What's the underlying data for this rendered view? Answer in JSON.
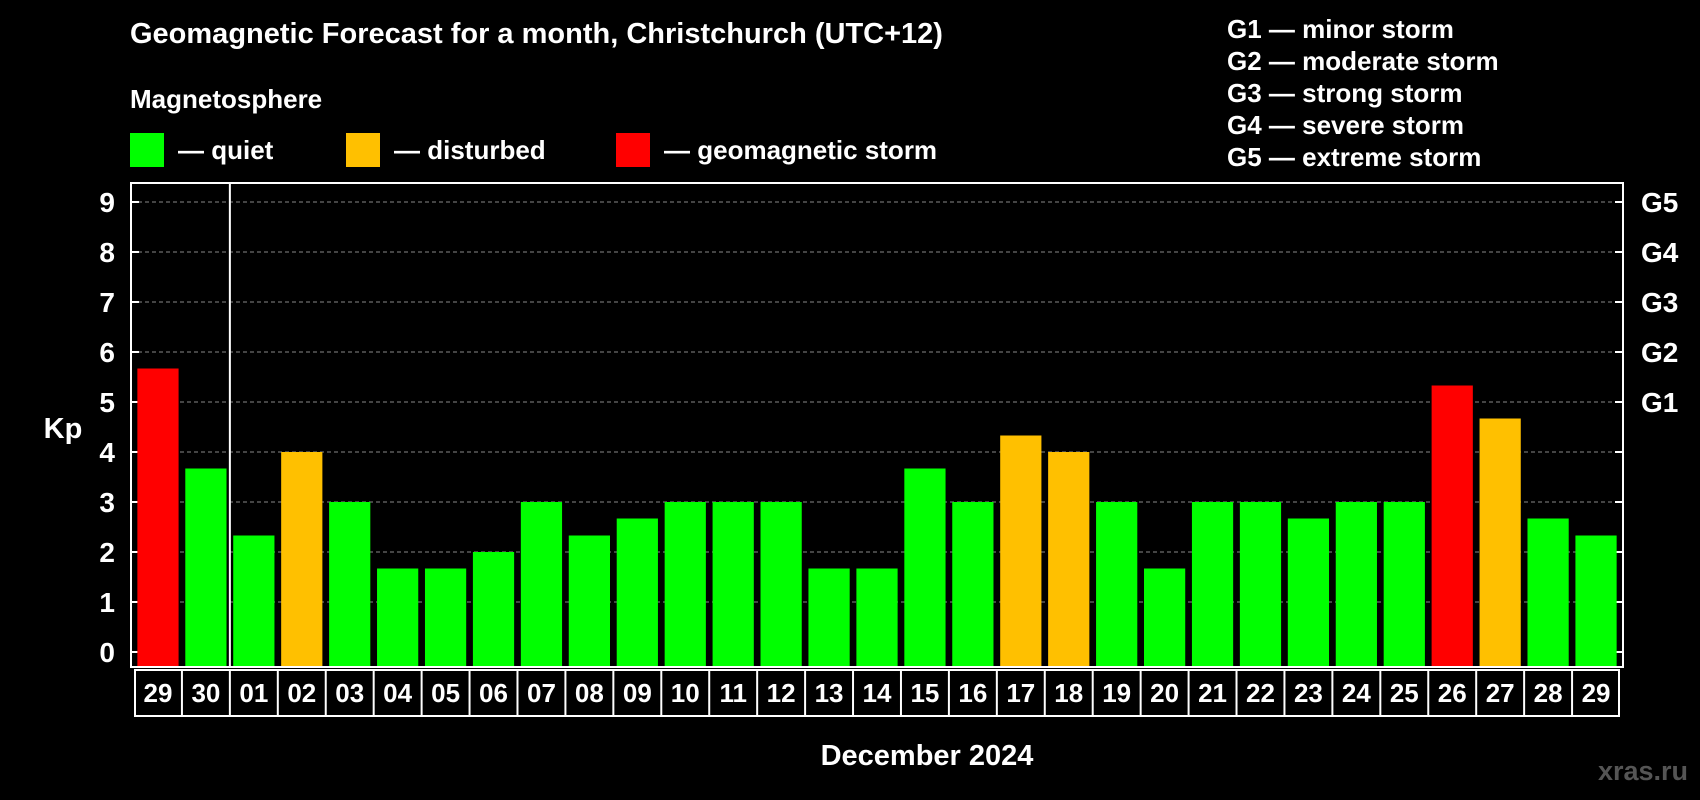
{
  "title": "Geomagnetic Forecast for a month, Christchurch (UTC+12)",
  "magnetosphere_label": "Magnetosphere",
  "legend": [
    {
      "label": "— quiet",
      "color": "#00ff00"
    },
    {
      "label": "— disturbed",
      "color": "#ffc000"
    },
    {
      "label": "— geomagnetic storm",
      "color": "#ff0000"
    }
  ],
  "g_legend": [
    "G1 — minor storm",
    "G2 — moderate storm",
    "G3 — strong storm",
    "G4 — severe storm",
    "G5 — extreme storm"
  ],
  "watermark": "xras.ru",
  "chart_data": {
    "type": "bar",
    "title": "Geomagnetic Forecast for a month, Christchurch (UTC+12)",
    "xlabel": "December 2024",
    "ylabel": "Kp",
    "ylim": [
      0,
      9
    ],
    "yticks": [
      "0",
      "1",
      "2",
      "3",
      "4",
      "5",
      "6",
      "7",
      "8",
      "9"
    ],
    "right_axis_labels": [
      {
        "value": 5,
        "label": "G1"
      },
      {
        "value": 6,
        "label": "G2"
      },
      {
        "value": 7,
        "label": "G3"
      },
      {
        "value": 8,
        "label": "G4"
      },
      {
        "value": 9,
        "label": "G5"
      }
    ],
    "categories": [
      "29",
      "30",
      "01",
      "02",
      "03",
      "04",
      "05",
      "06",
      "07",
      "08",
      "09",
      "10",
      "11",
      "12",
      "13",
      "14",
      "15",
      "16",
      "17",
      "18",
      "19",
      "20",
      "21",
      "22",
      "23",
      "24",
      "25",
      "26",
      "27",
      "28",
      "29"
    ],
    "values": [
      5.67,
      3.67,
      2.33,
      4.0,
      3.0,
      1.67,
      1.67,
      2.0,
      3.0,
      2.33,
      2.67,
      3.0,
      3.0,
      3.0,
      1.67,
      1.67,
      3.67,
      3.0,
      4.33,
      4.0,
      3.0,
      1.67,
      3.0,
      3.0,
      2.67,
      3.0,
      3.0,
      5.33,
      4.67,
      2.67,
      2.33
    ],
    "status": [
      "storm",
      "quiet",
      "quiet",
      "disturbed",
      "quiet",
      "quiet",
      "quiet",
      "quiet",
      "quiet",
      "quiet",
      "quiet",
      "quiet",
      "quiet",
      "quiet",
      "quiet",
      "quiet",
      "quiet",
      "quiet",
      "disturbed",
      "disturbed",
      "quiet",
      "quiet",
      "quiet",
      "quiet",
      "quiet",
      "quiet",
      "quiet",
      "storm",
      "disturbed",
      "quiet",
      "quiet"
    ],
    "status_colors": {
      "quiet": "#00ff00",
      "disturbed": "#ffc000",
      "storm": "#ff0000"
    },
    "month_separator_after_index": 1,
    "grid": "dashed horizontal"
  }
}
